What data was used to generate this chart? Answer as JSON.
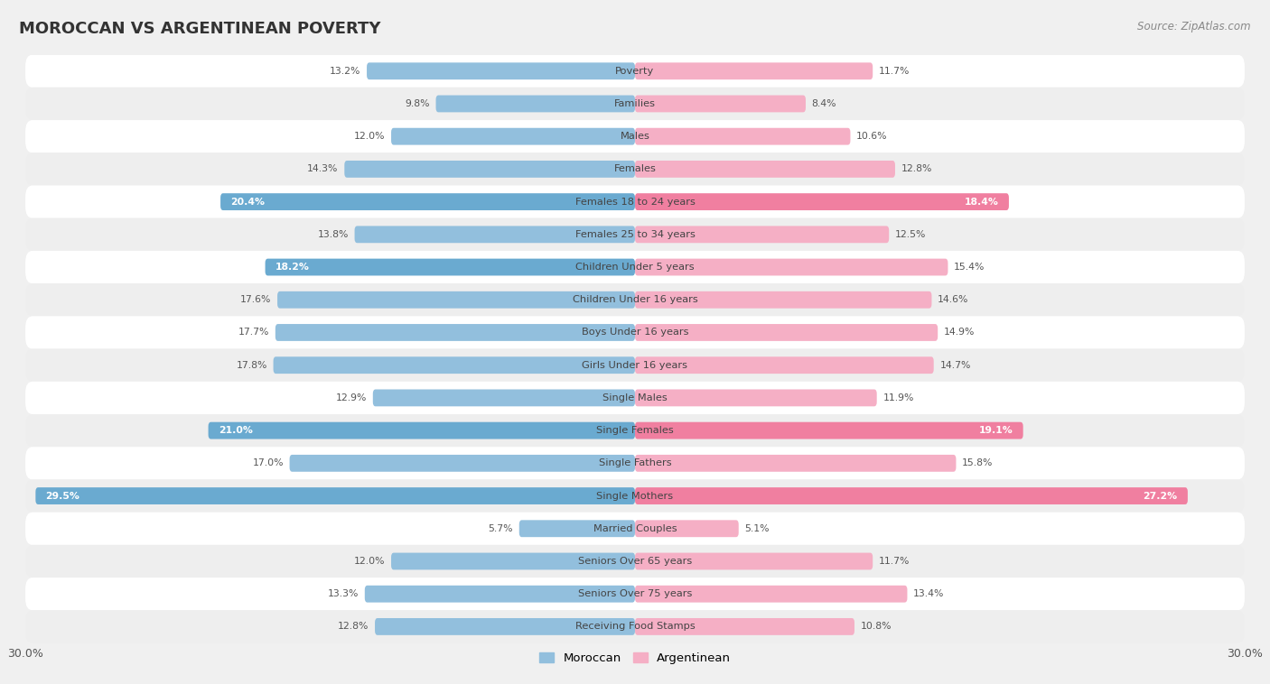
{
  "title": "Moroccan vs Argentinean Poverty",
  "source": "Source: ZipAtlas.com",
  "categories": [
    "Poverty",
    "Families",
    "Males",
    "Females",
    "Females 18 to 24 years",
    "Females 25 to 34 years",
    "Children Under 5 years",
    "Children Under 16 years",
    "Boys Under 16 years",
    "Girls Under 16 years",
    "Single Males",
    "Single Females",
    "Single Fathers",
    "Single Mothers",
    "Married Couples",
    "Seniors Over 65 years",
    "Seniors Over 75 years",
    "Receiving Food Stamps"
  ],
  "moroccan": [
    13.2,
    9.8,
    12.0,
    14.3,
    20.4,
    13.8,
    18.2,
    17.6,
    17.7,
    17.8,
    12.9,
    21.0,
    17.0,
    29.5,
    5.7,
    12.0,
    13.3,
    12.8
  ],
  "argentinean": [
    11.7,
    8.4,
    10.6,
    12.8,
    18.4,
    12.5,
    15.4,
    14.6,
    14.9,
    14.7,
    11.9,
    19.1,
    15.8,
    27.2,
    5.1,
    11.7,
    13.4,
    10.8
  ],
  "moroccan_color": "#92bfdd",
  "argentinean_color": "#f5afc5",
  "moroccan_highlight_color": "#6aaad0",
  "argentinean_highlight_color": "#f07fa0",
  "highlight_threshold": 18.0,
  "x_max": 30.0,
  "row_color_even": "#ffffff",
  "row_color_odd": "#eeeeee",
  "background_color": "#f0f0f0",
  "bar_height": 0.52,
  "legend_moroccan": "Moroccan",
  "legend_argentinean": "Argentinean"
}
